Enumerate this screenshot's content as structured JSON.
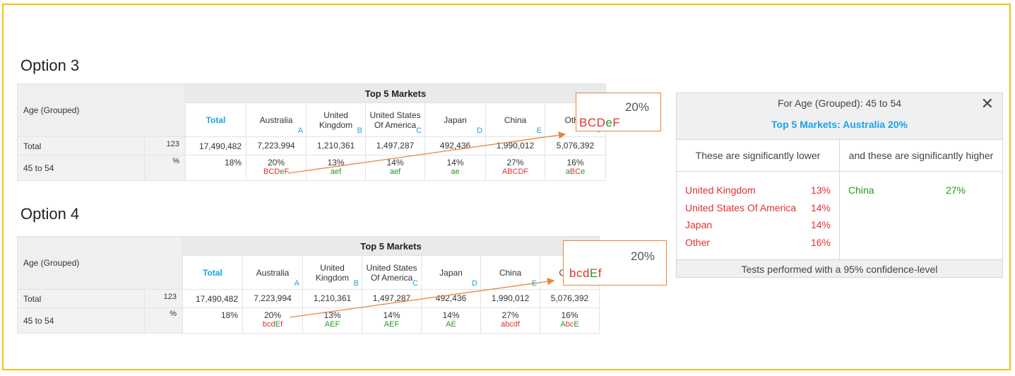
{
  "options": [
    {
      "title": "Option 3",
      "corner_label": "Age (Grouped)",
      "group_header": "Top 5 Markets",
      "columns": [
        {
          "label": "Total",
          "letter": ""
        },
        {
          "label": "Australia",
          "letter": "A"
        },
        {
          "label": "United Kingdom",
          "letter": "B"
        },
        {
          "label": "United States Of America",
          "letter": "C"
        },
        {
          "label": "Japan",
          "letter": "D"
        },
        {
          "label": "China",
          "letter": "E"
        },
        {
          "label": "Other",
          "letter": "F"
        }
      ],
      "total_row": {
        "label": "Total",
        "stat": "123",
        "values": [
          "17,490,482",
          "7,223,994",
          "1,210,361",
          "1,497,287",
          "492,436",
          "1,990,012",
          "5,076,392"
        ]
      },
      "age_row": {
        "label": "45 to 54",
        "stat": "%",
        "values": [
          "18%",
          "20%",
          "13%",
          "14%",
          "14%",
          "27%",
          "16%"
        ],
        "sig_markers": [
          [],
          [
            {
              "t": "BCD",
              "c": "r"
            },
            {
              "t": "e",
              "c": "g"
            },
            {
              "t": "F",
              "c": "r"
            }
          ],
          [
            {
              "t": "aef",
              "c": "g"
            }
          ],
          [
            {
              "t": "aef",
              "c": "g"
            }
          ],
          [
            {
              "t": "ae",
              "c": "g"
            }
          ],
          [
            {
              "t": "ABCDF",
              "c": "r"
            }
          ],
          [
            {
              "t": "a",
              "c": "g"
            },
            {
              "t": "BC",
              "c": "r"
            },
            {
              "t": "e",
              "c": "g"
            }
          ]
        ]
      },
      "callout": {
        "value": "20%",
        "sig": [
          {
            "t": "BCD",
            "c": "r"
          },
          {
            "t": "e",
            "c": "g"
          },
          {
            "t": "F",
            "c": "r"
          }
        ]
      }
    },
    {
      "title": "Option 4",
      "corner_label": "Age (Grouped)",
      "group_header": "Top 5 Markets",
      "columns": [
        {
          "label": "Total",
          "letter": ""
        },
        {
          "label": "Australia",
          "letter": "A"
        },
        {
          "label": "United Kingdom",
          "letter": "B"
        },
        {
          "label": "United States Of America",
          "letter": "C"
        },
        {
          "label": "Japan",
          "letter": "D"
        },
        {
          "label": "China",
          "letter": "E"
        },
        {
          "label": "Other",
          "letter": "F"
        }
      ],
      "total_row": {
        "label": "Total",
        "stat": "123",
        "values": [
          "17,490,482",
          "7,223,994",
          "1,210,361",
          "1,497,287",
          "492,436",
          "1,990,012",
          "5,076,392"
        ]
      },
      "age_row": {
        "label": "45 to 54",
        "stat": "%",
        "values": [
          "18%",
          "20%",
          "13%",
          "14%",
          "14%",
          "27%",
          "16%"
        ],
        "sig_markers": [
          [],
          [
            {
              "t": "bcd",
              "c": "r"
            },
            {
              "t": "E",
              "c": "g"
            },
            {
              "t": "f",
              "c": "r"
            }
          ],
          [
            {
              "t": "AEF",
              "c": "g"
            }
          ],
          [
            {
              "t": "AEF",
              "c": "g"
            }
          ],
          [
            {
              "t": "AE",
              "c": "g"
            }
          ],
          [
            {
              "t": "abcdf",
              "c": "r"
            }
          ],
          [
            {
              "t": "A",
              "c": "g"
            },
            {
              "t": "bc",
              "c": "r"
            },
            {
              "t": "E",
              "c": "g"
            }
          ]
        ]
      },
      "callout": {
        "value": "20%",
        "sig": [
          {
            "t": "bcd",
            "c": "r"
          },
          {
            "t": "E",
            "c": "g"
          },
          {
            "t": "f",
            "c": "r"
          }
        ]
      }
    }
  ],
  "panel": {
    "title": "For Age (Grouped): 45 to 54",
    "subtitle": "Top 5 Markets: Australia 20%",
    "close_icon": "close-icon",
    "close_glyph": "✕",
    "lower_header": "These are significantly lower",
    "higher_header": "and these are significantly higher",
    "lower": [
      {
        "name": "United Kingdom",
        "value": "13%"
      },
      {
        "name": "United States Of America",
        "value": "14%"
      },
      {
        "name": "Japan",
        "value": "14%"
      },
      {
        "name": "Other",
        "value": "16%"
      }
    ],
    "higher": [
      {
        "name": "China",
        "value": "27%"
      }
    ],
    "footer": "Tests performed with a 95% confidence-level"
  },
  "colors": {
    "frame": "#f2c20f",
    "accent_blue": "#1aa3e8",
    "sig_red": "#e23030",
    "sig_green": "#1f9a1f",
    "callout_border": "#e8853d"
  }
}
